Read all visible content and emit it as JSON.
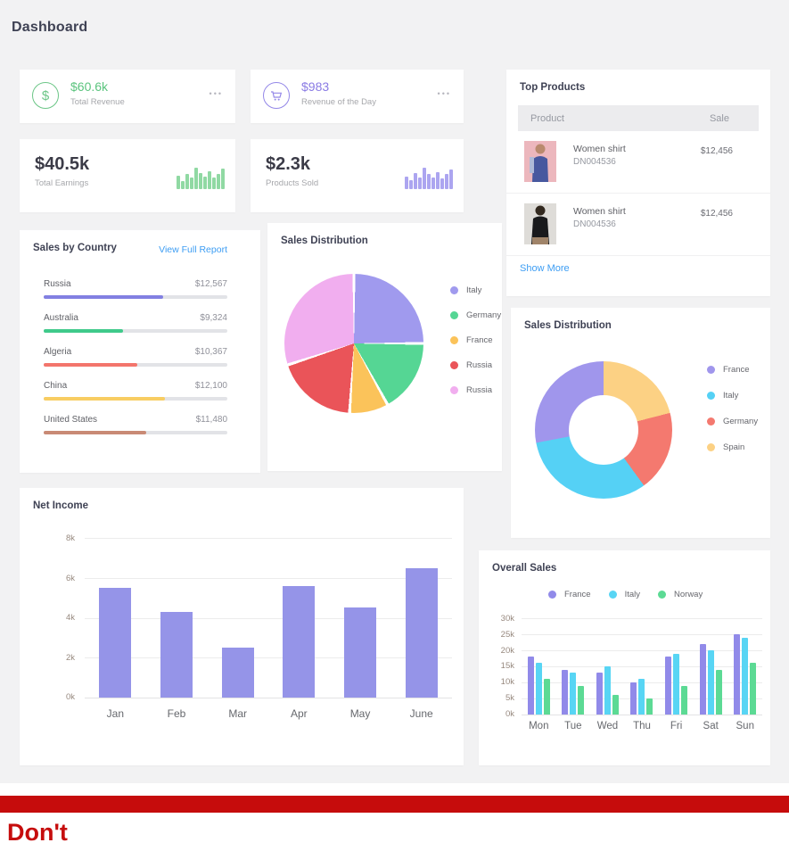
{
  "page": {
    "title": "Dashboard",
    "footer_label": "Don't"
  },
  "colors": {
    "green_accent": "#5bc47e",
    "purple_accent": "#8a7be4",
    "link_blue": "#3d9df3",
    "footer_red": "#c60c0c",
    "bar_track": "#e2e3e7",
    "net_income_bar": "#9594e8"
  },
  "cards": {
    "revenue": {
      "value": "$60.6k",
      "label": "Total Revenue",
      "menu_icon": "•••",
      "icon": "dollar-circle"
    },
    "revenue_day": {
      "value": "$983",
      "label": "Revenue of the Day",
      "menu_icon": "•••",
      "icon": "cart-circle"
    },
    "earnings": {
      "value": "$40.5k",
      "label": "Total Earnings",
      "spark_color": "#90d9a3",
      "spark": [
        15,
        9,
        17,
        13,
        24,
        18,
        14,
        20,
        13,
        17,
        23
      ]
    },
    "products": {
      "value": "$2.3k",
      "label": "Products Sold",
      "spark_color": "#aca5f0",
      "spark": [
        14,
        10,
        18,
        13,
        24,
        17,
        13,
        19,
        12,
        17,
        22
      ]
    }
  },
  "top_products": {
    "title": "Top Products",
    "columns": {
      "product": "Product",
      "sale": "Sale"
    },
    "rows": [
      {
        "name": "Women shirt",
        "code": "DN004536",
        "sale": "$12,456",
        "image": "woman-blue-shirt"
      },
      {
        "name": "Women shirt",
        "code": "DN004536",
        "sale": "$12,456",
        "image": "woman-black-shirt"
      }
    ],
    "show_more": "Show More"
  },
  "sales_by_country": {
    "title": "Sales by Country",
    "link": "View Full Report",
    "rows": [
      {
        "country": "Russia",
        "amount": "$12,567",
        "percent": 65,
        "color": "#8280e2"
      },
      {
        "country": "Australia",
        "amount": "$9,324",
        "percent": 43,
        "color": "#3fca8b"
      },
      {
        "country": "Algeria",
        "amount": "$10,367",
        "percent": 51,
        "color": "#f3756c"
      },
      {
        "country": "China",
        "amount": "$12,100",
        "percent": 66,
        "color": "#f8cd62"
      },
      {
        "country": "United States",
        "amount": "$11,480",
        "percent": 56,
        "color": "#c98a75"
      }
    ]
  },
  "chart_data": [
    {
      "id": "sales_pie",
      "type": "pie",
      "title": "Sales Distribution",
      "legend_position": "right",
      "slices": [
        {
          "label": "Italy",
          "value": 25,
          "color": "#a09aee"
        },
        {
          "label": "Germany",
          "value": 17,
          "color": "#55d694"
        },
        {
          "label": "France",
          "value": 9,
          "color": "#fbc35a"
        },
        {
          "label": "Russia",
          "value": 19,
          "color": "#ea5459"
        },
        {
          "label": "Russia",
          "value": 30,
          "color": "#f1aeef"
        }
      ]
    },
    {
      "id": "sales_donut",
      "type": "pie",
      "subtype": "donut",
      "title": "Sales Distribution",
      "legend_position": "right",
      "slices": [
        {
          "label": "Spain",
          "value": 21,
          "color": "#fcd184"
        },
        {
          "label": "Germany",
          "value": 19,
          "color": "#f4796f"
        },
        {
          "label": "Italy",
          "value": 32,
          "color": "#55d1f5"
        },
        {
          "label": "France",
          "value": 28,
          "color": "#a096ec"
        }
      ],
      "legend_order": [
        "France",
        "Italy",
        "Germany",
        "Spain"
      ]
    },
    {
      "id": "net_income",
      "type": "bar",
      "title": "Net Income",
      "categories": [
        "Jan",
        "Feb",
        "Mar",
        "Apr",
        "May",
        "June"
      ],
      "values": [
        5.5,
        4.3,
        2.5,
        5.6,
        4.5,
        6.5
      ],
      "ylim": [
        0,
        8
      ],
      "yticks": [
        "8k",
        "6k",
        "4k",
        "2k",
        "0k"
      ],
      "bar_color": "#9594e8",
      "grid": true
    },
    {
      "id": "overall_sales",
      "type": "bar",
      "subtype": "grouped",
      "title": "Overall Sales",
      "categories": [
        "Mon",
        "Tue",
        "Wed",
        "Thu",
        "Fri",
        "Sat",
        "Sun"
      ],
      "series": [
        {
          "name": "France",
          "color": "#918ae9",
          "values": [
            18,
            14,
            13,
            10,
            18,
            22,
            25
          ]
        },
        {
          "name": "Italy",
          "color": "#58d5f4",
          "values": [
            16,
            13,
            15,
            11,
            19,
            20,
            24
          ]
        },
        {
          "name": "Norway",
          "color": "#5cda94",
          "values": [
            11,
            9,
            6,
            5,
            9,
            14,
            16
          ]
        }
      ],
      "ylim": [
        0,
        30
      ],
      "yticks": [
        "30k",
        "25k",
        "20k",
        "15k",
        "10k",
        "5k",
        "0k"
      ],
      "legend_position": "top",
      "grid": true
    }
  ]
}
